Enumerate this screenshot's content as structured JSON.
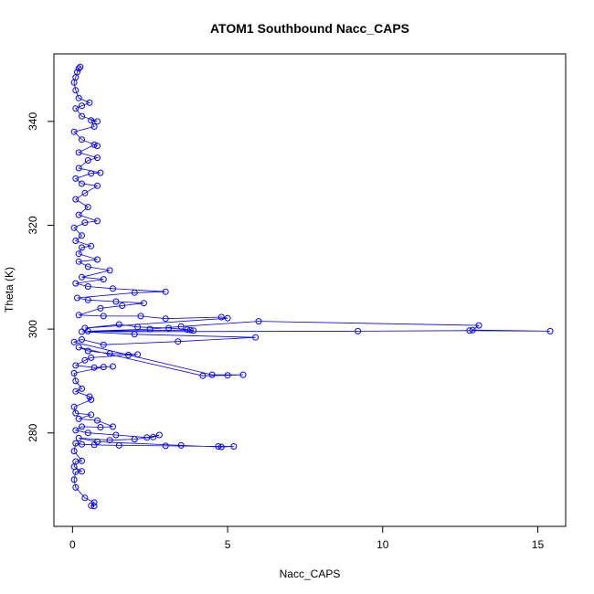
{
  "chart_data": {
    "type": "line",
    "title": "ATOM1 Southbound Nacc_CAPS",
    "xlabel": "Nacc_CAPS",
    "ylabel": "Theta (K)",
    "xlim": [
      -0.6,
      15.9
    ],
    "ylim": [
      262,
      353
    ],
    "xticks": [
      0,
      5,
      10,
      15
    ],
    "yticks": [
      280,
      300,
      320,
      340
    ],
    "grid": false,
    "legend": "none",
    "series_style": "points connected by lines (open circles)",
    "series": [
      {
        "color": "#0000ff",
        "points": [
          [
            0.7,
            265.9
          ],
          [
            0.6,
            266.0
          ],
          [
            0.7,
            266.6
          ],
          [
            0.4,
            267.5
          ],
          [
            0.1,
            269.5
          ],
          [
            0.05,
            271.0
          ],
          [
            0.1,
            272.5
          ],
          [
            0.3,
            272.6
          ],
          [
            0.05,
            273.5
          ],
          [
            0.1,
            274.5
          ],
          [
            0.3,
            274.6
          ],
          [
            0.05,
            276.5
          ],
          [
            0.1,
            278.0
          ],
          [
            0.3,
            277.8
          ],
          [
            0.7,
            277.7
          ],
          [
            1.5,
            277.6
          ],
          [
            3.0,
            277.5
          ],
          [
            4.7,
            277.4
          ],
          [
            5.2,
            277.4
          ],
          [
            4.8,
            277.3
          ],
          [
            3.5,
            277.6
          ],
          [
            0.8,
            278.3
          ],
          [
            0.2,
            279.0
          ],
          [
            1.2,
            278.6
          ],
          [
            2.0,
            278.8
          ],
          [
            2.6,
            279.2
          ],
          [
            2.8,
            279.6
          ],
          [
            2.4,
            279.1
          ],
          [
            1.4,
            279.6
          ],
          [
            0.5,
            280.0
          ],
          [
            0.1,
            280.5
          ],
          [
            0.3,
            281.2
          ],
          [
            0.9,
            281.1
          ],
          [
            1.3,
            281.2
          ],
          [
            0.8,
            282.4
          ],
          [
            0.2,
            282.7
          ],
          [
            0.6,
            283.5
          ],
          [
            0.1,
            283.8
          ],
          [
            0.05,
            285.0
          ],
          [
            0.6,
            286.4
          ],
          [
            0.55,
            287.0
          ],
          [
            0.1,
            288.0
          ],
          [
            0.3,
            288.5
          ],
          [
            0.1,
            290.0
          ],
          [
            0.05,
            291.5
          ],
          [
            1.0,
            292.7
          ],
          [
            1.3,
            292.8
          ],
          [
            0.7,
            292.6
          ],
          [
            0.1,
            293.0
          ],
          [
            0.4,
            294.0
          ],
          [
            0.6,
            294.5
          ],
          [
            1.8,
            295.0
          ],
          [
            2.1,
            295.1
          ],
          [
            1.2,
            295.3
          ],
          [
            0.5,
            295.8
          ],
          [
            0.2,
            296.5
          ],
          [
            4.2,
            291.0
          ],
          [
            5.0,
            291.1
          ],
          [
            5.5,
            291.2
          ],
          [
            4.5,
            291.2
          ],
          [
            0.05,
            297.5
          ],
          [
            0.3,
            298.0
          ],
          [
            1.0,
            297.0
          ],
          [
            3.4,
            297.6
          ],
          [
            5.9,
            298.4
          ],
          [
            2.0,
            299.0
          ],
          [
            0.3,
            299.5
          ],
          [
            9.2,
            299.6
          ],
          [
            12.8,
            299.7
          ],
          [
            15.4,
            299.6
          ],
          [
            12.9,
            299.8
          ],
          [
            13.1,
            300.7
          ],
          [
            6.0,
            301.5
          ],
          [
            3.5,
            300.5
          ],
          [
            2.5,
            300.0
          ],
          [
            0.5,
            299.6
          ],
          [
            3.8,
            299.8
          ],
          [
            3.9,
            299.7
          ],
          [
            3.7,
            299.9
          ],
          [
            3.1,
            300.2
          ],
          [
            2.1,
            300.4
          ],
          [
            1.5,
            300.9
          ],
          [
            0.4,
            300.2
          ],
          [
            5.0,
            302.1
          ],
          [
            4.8,
            302.3
          ],
          [
            3.0,
            302.0
          ],
          [
            2.2,
            302.5
          ],
          [
            1.0,
            302.5
          ],
          [
            0.2,
            302.7
          ],
          [
            0.9,
            304.0
          ],
          [
            1.6,
            304.5
          ],
          [
            2.3,
            305.0
          ],
          [
            1.4,
            305.3
          ],
          [
            0.5,
            305.6
          ],
          [
            0.15,
            306.0
          ],
          [
            2.0,
            307.0
          ],
          [
            3.0,
            307.2
          ],
          [
            1.3,
            307.8
          ],
          [
            0.5,
            308.2
          ],
          [
            0.1,
            308.8
          ],
          [
            1.0,
            309.6
          ],
          [
            0.3,
            310.0
          ],
          [
            1.2,
            311.3
          ],
          [
            0.5,
            312.0
          ],
          [
            0.2,
            313.0
          ],
          [
            0.8,
            313.4
          ],
          [
            0.2,
            314.5
          ],
          [
            0.3,
            315.7
          ],
          [
            0.6,
            316.0
          ],
          [
            0.1,
            317.0
          ],
          [
            0.3,
            318.0
          ],
          [
            0.05,
            319.5
          ],
          [
            0.4,
            320.5
          ],
          [
            0.8,
            320.8
          ],
          [
            0.2,
            322.0
          ],
          [
            0.5,
            323.5
          ],
          [
            0.1,
            325.0
          ],
          [
            0.4,
            326.2
          ],
          [
            0.8,
            327.6
          ],
          [
            0.3,
            328.0
          ],
          [
            0.1,
            329.0
          ],
          [
            0.6,
            330.0
          ],
          [
            0.9,
            330.1
          ],
          [
            0.2,
            331.0
          ],
          [
            0.5,
            332.5
          ],
          [
            0.8,
            333.0
          ],
          [
            0.2,
            334.0
          ],
          [
            0.7,
            335.5
          ],
          [
            0.8,
            335.3
          ],
          [
            0.3,
            336.5
          ],
          [
            0.05,
            338.0
          ],
          [
            0.7,
            339.0
          ],
          [
            0.6,
            340.2
          ],
          [
            0.8,
            340.0
          ],
          [
            0.3,
            341.0
          ],
          [
            0.1,
            342.5
          ],
          [
            0.3,
            343.0
          ],
          [
            0.55,
            343.6
          ],
          [
            0.2,
            344.5
          ],
          [
            0.1,
            346.0
          ],
          [
            0.05,
            347.5
          ],
          [
            0.1,
            348.5
          ],
          [
            0.15,
            349.5
          ],
          [
            0.2,
            350.2
          ],
          [
            0.25,
            350.5
          ]
        ]
      }
    ]
  }
}
